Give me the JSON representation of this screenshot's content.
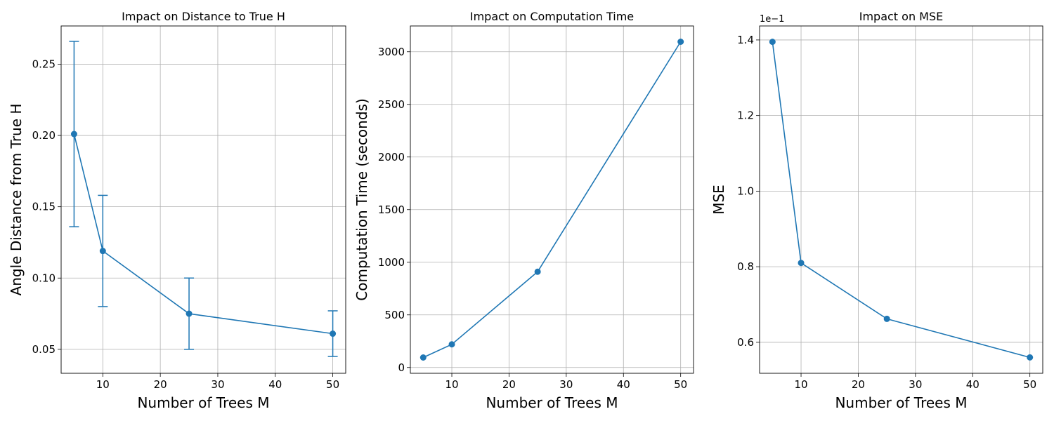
{
  "chart_data": [
    {
      "type": "line",
      "title": "Impact on Distance to True H",
      "xlabel": "Number of Trees M",
      "ylabel": "Angle Distance from True H",
      "x": [
        5,
        10,
        25,
        50
      ],
      "series": [
        {
          "values": [
            0.201,
            0.119,
            0.075,
            0.061
          ],
          "error_low": [
            0.136,
            0.08,
            0.05,
            0.045
          ],
          "error_high": [
            0.266,
            0.158,
            0.1,
            0.077
          ]
        }
      ],
      "xlim": [
        2.75,
        52.25
      ],
      "ylim": [
        0.0332,
        0.2768
      ],
      "xticks": [
        10,
        20,
        30,
        40,
        50
      ],
      "xtick_labels": [
        "10",
        "20",
        "30",
        "40",
        "50"
      ],
      "yticks": [
        0.05,
        0.1,
        0.15,
        0.2,
        0.25
      ],
      "ytick_labels": [
        "0.05",
        "0.10",
        "0.15",
        "0.20",
        "0.25"
      ],
      "offset_text": "",
      "grid": true,
      "color": "#1f77b4"
    },
    {
      "type": "line",
      "title": "Impact on Computation Time",
      "xlabel": "Number of Trees M",
      "ylabel": "Computation Time (seconds)",
      "x": [
        5,
        10,
        25,
        50
      ],
      "series": [
        {
          "values": [
            95,
            220,
            910,
            3095
          ]
        }
      ],
      "xlim": [
        2.75,
        52.25
      ],
      "ylim": [
        -55,
        3245
      ],
      "xticks": [
        10,
        20,
        30,
        40,
        50
      ],
      "xtick_labels": [
        "10",
        "20",
        "30",
        "40",
        "50"
      ],
      "yticks": [
        0,
        500,
        1000,
        1500,
        2000,
        2500,
        3000
      ],
      "ytick_labels": [
        "0",
        "500",
        "1000",
        "1500",
        "2000",
        "2500",
        "3000"
      ],
      "offset_text": "",
      "grid": true,
      "color": "#1f77b4"
    },
    {
      "type": "line",
      "title": "Impact on MSE",
      "xlabel": "Number of Trees M",
      "ylabel": "MSE",
      "x": [
        5,
        10,
        25,
        50
      ],
      "series": [
        {
          "values": [
            1.395,
            0.81,
            0.662,
            0.56
          ]
        }
      ],
      "xlim": [
        2.75,
        52.25
      ],
      "ylim": [
        0.518,
        1.437
      ],
      "xticks": [
        10,
        20,
        30,
        40,
        50
      ],
      "xtick_labels": [
        "10",
        "20",
        "30",
        "40",
        "50"
      ],
      "yticks": [
        0.6,
        0.8,
        1.0,
        1.2,
        1.4
      ],
      "ytick_labels": [
        "0.6",
        "0.8",
        "1.0",
        "1.2",
        "1.4"
      ],
      "offset_text": "1e−1",
      "grid": true,
      "color": "#1f77b4"
    }
  ]
}
